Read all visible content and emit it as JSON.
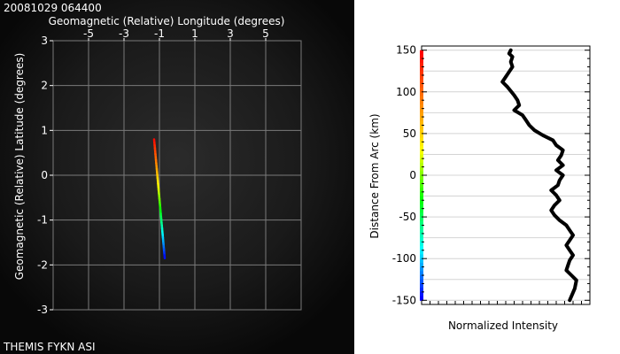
{
  "map_panel": {
    "timestamp": "20081029 064400",
    "station_label": "THEMIS FYKN ASI",
    "background_color": "#0b0b0b"
  },
  "chart_data": [
    {
      "type": "line",
      "title": "",
      "xlabel": "Geomagnetic (Relative) Longitude (degrees)",
      "ylabel": "Geomagnetic (Relative) Latitude (degrees)",
      "xlim": [
        -7,
        7
      ],
      "ylim": [
        -3,
        3
      ],
      "xticks": [
        -5,
        -3,
        -1,
        1,
        3,
        5
      ],
      "yticks": [
        -3,
        -2,
        -1,
        0,
        1,
        2,
        3
      ],
      "grid": true,
      "x_axis_position": "top",
      "series": [
        {
          "x": [
            -1.3,
            -0.7
          ],
          "y": [
            0.8,
            -1.85
          ],
          "color_gradient": [
            "#ff0000",
            "#ff8000",
            "#ffff00",
            "#00ff00",
            "#00ffff",
            "#0000ff"
          ]
        }
      ]
    },
    {
      "type": "line",
      "title": "",
      "xlabel": "Normalized Intensity",
      "ylabel": "Distance From Arc (km)",
      "ylim": [
        -155,
        155
      ],
      "yticks": [
        -150,
        -100,
        -50,
        0,
        50,
        100,
        150
      ],
      "grid": true,
      "distance_colorbar": [
        "#ff0000",
        "#ff8000",
        "#ffff00",
        "#00ff00",
        "#00ffff",
        "#0000ff"
      ],
      "series": [
        {
          "x": [
            0.53,
            0.52,
            0.54,
            0.53,
            0.54,
            0.52,
            0.5,
            0.48,
            0.51,
            0.53,
            0.55,
            0.57,
            0.58,
            0.55,
            0.6,
            0.62,
            0.64,
            0.67,
            0.72,
            0.78,
            0.8,
            0.84,
            0.83,
            0.81,
            0.84,
            0.8,
            0.84,
            0.82,
            0.81,
            0.77,
            0.8,
            0.82,
            0.79,
            0.77,
            0.79,
            0.82,
            0.86,
            0.88,
            0.9,
            0.88,
            0.86,
            0.88,
            0.9,
            0.88,
            0.87,
            0.86,
            0.89,
            0.92,
            0.91,
            0.88
          ],
          "y": [
            150,
            146,
            142,
            136,
            130,
            124,
            118,
            112,
            106,
            101,
            96,
            90,
            84,
            78,
            72,
            66,
            60,
            54,
            48,
            42,
            36,
            30,
            24,
            18,
            12,
            6,
            0,
            -6,
            -12,
            -18,
            -24,
            -30,
            -36,
            -42,
            -48,
            -54,
            -60,
            -66,
            -72,
            -78,
            -84,
            -90,
            -96,
            -102,
            -108,
            -114,
            -120,
            -126,
            -136,
            -150
          ]
        }
      ]
    }
  ]
}
